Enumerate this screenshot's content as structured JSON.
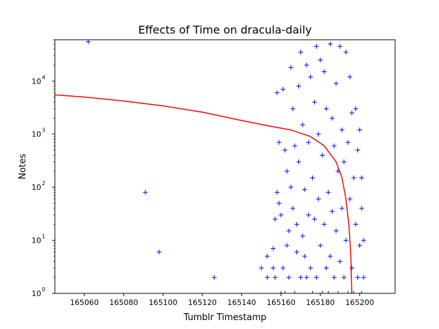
{
  "chart_data": {
    "type": "scatter",
    "title": "Effects of Time on dracula-daily",
    "xlabel": "Tumblr Timestamp",
    "ylabel": "Notes",
    "xlim": [
      165045,
      165218
    ],
    "ylim": [
      1,
      60000
    ],
    "yscale": "log",
    "grid": false,
    "legend": "none",
    "xticks": [
      165060,
      165080,
      165100,
      165120,
      165140,
      165160,
      165180,
      165200
    ],
    "xtick_labels": [
      "165060",
      "165080",
      "165100",
      "165120",
      "165140",
      "165160",
      "165180",
      "165200"
    ],
    "yticks": [
      1,
      10,
      100,
      1000,
      10000
    ],
    "ytick_labels": [
      {
        "base": "10",
        "exp": "0"
      },
      {
        "base": "10",
        "exp": "1"
      },
      {
        "base": "10",
        "exp": "2"
      },
      {
        "base": "10",
        "exp": "3"
      },
      {
        "base": "10",
        "exp": "4"
      }
    ],
    "series": [
      {
        "kind": "scatter",
        "marker": "+",
        "color": "#0000ff",
        "points": [
          [
            165062,
            55000
          ],
          [
            165091,
            80
          ],
          [
            165098,
            6
          ],
          [
            165126,
            2
          ],
          [
            165150,
            3
          ],
          [
            165153,
            2
          ],
          [
            165153,
            5
          ],
          [
            165156,
            7
          ],
          [
            165156,
            3
          ],
          [
            165157,
            2
          ],
          [
            165157,
            25
          ],
          [
            165158,
            80
          ],
          [
            165158,
            6000
          ],
          [
            165159,
            700
          ],
          [
            165159,
            50
          ],
          [
            165160,
            30
          ],
          [
            165160,
            1
          ],
          [
            165161,
            3
          ],
          [
            165161,
            7000
          ],
          [
            165162,
            500
          ],
          [
            165162,
            1
          ],
          [
            165163,
            8
          ],
          [
            165163,
            200
          ],
          [
            165164,
            2
          ],
          [
            165164,
            15
          ],
          [
            165165,
            18000
          ],
          [
            165165,
            100
          ],
          [
            165166,
            3000
          ],
          [
            165166,
            40
          ],
          [
            165167,
            1
          ],
          [
            165167,
            600
          ],
          [
            165168,
            20
          ],
          [
            165168,
            6
          ],
          [
            165169,
            8000
          ],
          [
            165169,
            300
          ],
          [
            165170,
            35000
          ],
          [
            165170,
            2
          ],
          [
            165171,
            1500
          ],
          [
            165171,
            12
          ],
          [
            165172,
            90
          ],
          [
            165172,
            5
          ],
          [
            165173,
            20000
          ],
          [
            165173,
            2
          ],
          [
            165174,
            700
          ],
          [
            165174,
            30
          ],
          [
            165175,
            3
          ],
          [
            165175,
            12000
          ],
          [
            165176,
            150
          ],
          [
            165176,
            1
          ],
          [
            165177,
            4000
          ],
          [
            165177,
            25
          ],
          [
            165178,
            2
          ],
          [
            165178,
            45000
          ],
          [
            165179,
            1000
          ],
          [
            165179,
            60
          ],
          [
            165180,
            8
          ],
          [
            165180,
            25000
          ],
          [
            165181,
            1
          ],
          [
            165181,
            400
          ],
          [
            165182,
            15000
          ],
          [
            165182,
            20
          ],
          [
            165183,
            3
          ],
          [
            165183,
            3000
          ],
          [
            165184,
            80
          ],
          [
            165184,
            1
          ],
          [
            165185,
            50000
          ],
          [
            165185,
            5
          ],
          [
            165186,
            2000
          ],
          [
            165186,
            35
          ],
          [
            165187,
            2
          ],
          [
            165187,
            600
          ],
          [
            165188,
            9000
          ],
          [
            165188,
            15
          ],
          [
            165189,
            200
          ],
          [
            165189,
            1
          ],
          [
            165190,
            45000
          ],
          [
            165190,
            4
          ],
          [
            165191,
            1200
          ],
          [
            165191,
            40
          ],
          [
            165192,
            2
          ],
          [
            165192,
            300
          ],
          [
            165193,
            35000
          ],
          [
            165193,
            10
          ],
          [
            165194,
            700
          ],
          [
            165194,
            1
          ],
          [
            165195,
            12000
          ],
          [
            165195,
            60
          ],
          [
            165196,
            3
          ],
          [
            165196,
            2500
          ],
          [
            165197,
            150
          ],
          [
            165197,
            1
          ],
          [
            165198,
            3000
          ],
          [
            165198,
            20
          ],
          [
            165199,
            2
          ],
          [
            165199,
            500
          ],
          [
            165200,
            1200
          ],
          [
            165200,
            8
          ],
          [
            165201,
            1
          ],
          [
            165201,
            150
          ],
          [
            165201,
            40
          ],
          [
            165202,
            2
          ],
          [
            165202,
            10
          ]
        ]
      },
      {
        "kind": "line",
        "color": "#ff0000",
        "points": [
          [
            165045,
            5500
          ],
          [
            165060,
            5000
          ],
          [
            165080,
            4200
          ],
          [
            165100,
            3400
          ],
          [
            165120,
            2600
          ],
          [
            165140,
            1800
          ],
          [
            165155,
            1400
          ],
          [
            165165,
            1200
          ],
          [
            165175,
            900
          ],
          [
            165182,
            600
          ],
          [
            165188,
            300
          ],
          [
            165191,
            150
          ],
          [
            165193,
            60
          ],
          [
            165194.5,
            20
          ],
          [
            165195.5,
            5
          ],
          [
            165196,
            1
          ]
        ]
      }
    ]
  }
}
